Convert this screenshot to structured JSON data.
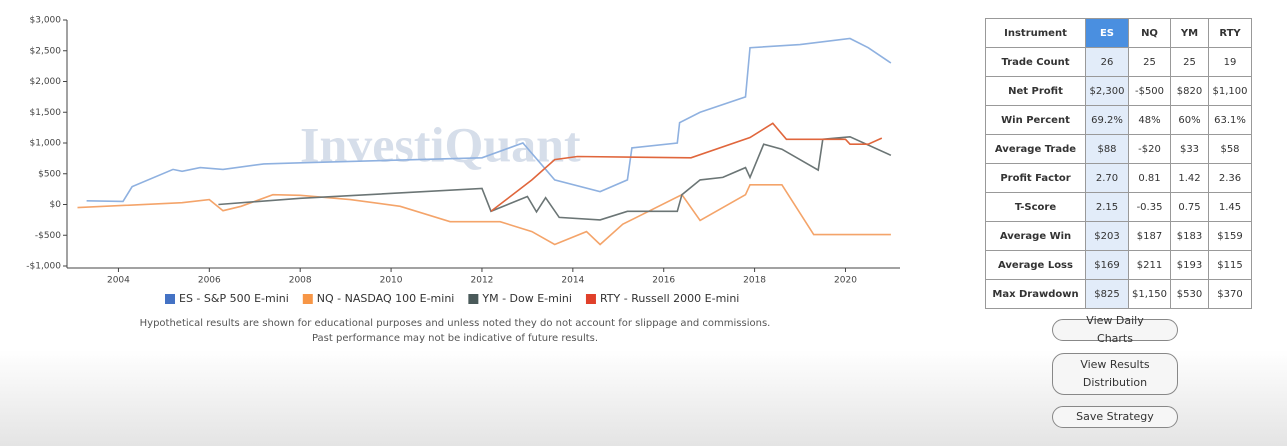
{
  "chart_data": {
    "type": "line",
    "ylim": [
      -1000,
      3000
    ],
    "yticks": [
      {
        "value": 3000,
        "label": "$3,000"
      },
      {
        "value": 2500,
        "label": "$2,500"
      },
      {
        "value": 2000,
        "label": "$2,000"
      },
      {
        "value": 1500,
        "label": "$1,500"
      },
      {
        "value": 1000,
        "label": "$1,000"
      },
      {
        "value": 500,
        "label": "$500"
      },
      {
        "value": 0,
        "label": "$0"
      },
      {
        "value": -500,
        "label": "-$500"
      },
      {
        "value": -1000,
        "label": "-$1,000"
      }
    ],
    "xlim": [
      2003,
      2021.2
    ],
    "xticks": [
      2004,
      2006,
      2008,
      2010,
      2012,
      2014,
      2016,
      2018,
      2020
    ],
    "grid": false,
    "legend": "bottom",
    "series": [
      {
        "name": "ES - S&P 500 E-mini",
        "color": "#8fb1e0",
        "legend_color": "#4472c4",
        "x": [
          2003.3,
          2004.1,
          2004.3,
          2005.2,
          2005.4,
          2005.8,
          2006.3,
          2007.2,
          2008.1,
          2012,
          2012.9,
          2013.6,
          2014.6,
          2015.2,
          2015.3,
          2016.3,
          2016.35,
          2016.8,
          2017.8,
          2017.9,
          2019,
          2020.1,
          2020.5,
          2021
        ],
        "values": [
          60,
          50,
          290,
          570,
          540,
          600,
          570,
          660,
          680,
          760,
          1000,
          400,
          210,
          400,
          920,
          1000,
          1330,
          1500,
          1750,
          2550,
          2600,
          2700,
          2550,
          2300
        ]
      },
      {
        "name": "NQ - NASDAQ 100 E-mini",
        "color": "#f4a46a",
        "legend_color": "#f79646",
        "x": [
          2003.1,
          2005.4,
          2006,
          2006.3,
          2006.7,
          2007.4,
          2008,
          2009.1,
          2010.2,
          2011.3,
          2012.4,
          2013.1,
          2013.6,
          2014.3,
          2014.6,
          2015.1,
          2016.4,
          2016.8,
          2017.8,
          2017.9,
          2018.6,
          2019.3,
          2021
        ],
        "values": [
          -50,
          30,
          80,
          -100,
          -30,
          160,
          150,
          80,
          -30,
          -280,
          -280,
          -440,
          -650,
          -440,
          -650,
          -320,
          160,
          -260,
          160,
          320,
          320,
          -490,
          -490
        ]
      },
      {
        "name": "YM - Dow E-mini",
        "color": "#6b7575",
        "legend_color": "#4a5a5a",
        "x": [
          2006.2,
          2008,
          2012,
          2012.2,
          2013,
          2013.2,
          2013.4,
          2013.7,
          2014.6,
          2015.2,
          2016.3,
          2016.4,
          2016.8,
          2017.3,
          2017.8,
          2017.9,
          2018.2,
          2018.6,
          2019.4,
          2019.5,
          2020.1,
          2021
        ],
        "values": [
          0,
          100,
          260,
          -110,
          130,
          -120,
          110,
          -210,
          -250,
          -110,
          -110,
          160,
          400,
          440,
          600,
          440,
          980,
          900,
          560,
          1060,
          1100,
          800
        ]
      },
      {
        "name": "RTY - Russell 2000 E-mini",
        "color": "#e0663c",
        "legend_color": "#e0402a",
        "x": [
          2012.2,
          2013.1,
          2013.6,
          2014.1,
          2016.6,
          2017.9,
          2018.4,
          2018.7,
          2019.6,
          2020,
          2020.1,
          2020.5,
          2020.8
        ],
        "values": [
          -110,
          400,
          730,
          780,
          760,
          1090,
          1320,
          1060,
          1060,
          1060,
          980,
          980,
          1080
        ]
      }
    ]
  },
  "watermark": "InvestiQuant",
  "disclaimer": [
    "Hypothetical results are shown for educational purposes and unless noted they do not account for slippage and commissions.",
    "Past performance may not be indicative of future results."
  ],
  "table": {
    "header": [
      "Instrument",
      "ES",
      "NQ",
      "YM",
      "RTY"
    ],
    "rows": [
      [
        "Trade Count",
        "26",
        "25",
        "25",
        "19"
      ],
      [
        "Net Profit",
        "$2,300",
        "-$500",
        "$820",
        "$1,100"
      ],
      [
        "Win Percent",
        "69.2%",
        "48%",
        "60%",
        "63.1%"
      ],
      [
        "Average Trade",
        "$88",
        "-$20",
        "$33",
        "$58"
      ],
      [
        "Profit Factor",
        "2.70",
        "0.81",
        "1.42",
        "2.36"
      ],
      [
        "T-Score",
        "2.15",
        "-0.35",
        "0.75",
        "1.45"
      ],
      [
        "Average Win",
        "$203",
        "$187",
        "$183",
        "$159"
      ],
      [
        "Average Loss",
        "$169",
        "$211",
        "$193",
        "$115"
      ],
      [
        "Max Drawdown",
        "$825",
        "$1,150",
        "$530",
        "$370"
      ]
    ]
  },
  "buttons": [
    "View Daily Charts",
    "View Results Distribution",
    "Save Strategy"
  ]
}
